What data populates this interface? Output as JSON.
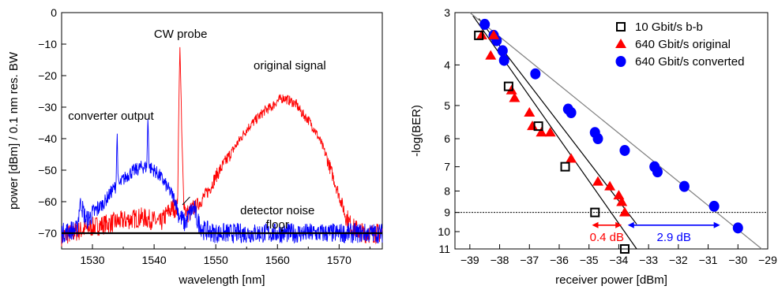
{
  "chart_data": [
    {
      "type": "line",
      "xlabel": "wavelength [nm]",
      "ylabel": "power [dBm] / 0.1 nm res. BW",
      "xlim": [
        1525,
        1577
      ],
      "ylim": [
        -75,
        0
      ],
      "xticks": [
        1530,
        1540,
        1550,
        1560,
        1570
      ],
      "yticks": [
        0,
        -10,
        -20,
        -30,
        -40,
        -50,
        -60,
        -70
      ],
      "grid": false,
      "colors": {
        "original": "#ff0000",
        "converted": "#0000ff",
        "axis": "#000000"
      },
      "annotations": [
        {
          "text": "CW probe",
          "x": 1544.3,
          "y": -8
        },
        {
          "text": "original signal",
          "x": 1562,
          "y": -18
        },
        {
          "text": "converter output",
          "x": 1533,
          "y": -34
        },
        {
          "text": "detector noise",
          "x": 1560,
          "y": -64
        },
        {
          "text": "floor",
          "x": 1560,
          "y": -68.5
        }
      ],
      "series": [
        {
          "name": "original signal",
          "color": "#ff0000",
          "x": [
            1525,
            1530,
            1535,
            1538,
            1540,
            1541,
            1542,
            1543,
            1543.8,
            1544,
            1544.2,
            1544.5,
            1544.8,
            1545.3,
            1546,
            1547.5,
            1549,
            1550,
            1551,
            1552,
            1553,
            1554,
            1555,
            1556,
            1557,
            1558,
            1559,
            1560,
            1561,
            1562,
            1563,
            1564,
            1565,
            1566,
            1567,
            1568,
            1569,
            1570,
            1571,
            1572,
            1573,
            1574,
            1577
          ],
          "y": [
            -71,
            -68,
            -66,
            -65,
            -66,
            -67,
            -64,
            -62,
            -62,
            -30,
            -10,
            -40,
            -60,
            -64,
            -63,
            -60,
            -56,
            -52,
            -49,
            -46,
            -43,
            -40,
            -37,
            -35,
            -33,
            -31,
            -30,
            -28,
            -27,
            -28,
            -29,
            -32,
            -34,
            -37,
            -41,
            -46,
            -52,
            -58,
            -64,
            -68,
            -69,
            -70,
            -70
          ]
        },
        {
          "name": "converter output",
          "color": "#0000ff",
          "x": [
            1525,
            1526.5,
            1527.5,
            1528,
            1529,
            1530,
            1531,
            1532,
            1533,
            1533.8,
            1534,
            1534.2,
            1535,
            1536,
            1537,
            1538,
            1538.8,
            1539,
            1539.2,
            1540,
            1541,
            1542,
            1543,
            1543.5,
            1544,
            1545,
            1546,
            1546.5,
            1547,
            1548,
            1550,
            1552,
            1555,
            1560,
            1565,
            1570,
            1575,
            1577
          ],
          "y": [
            -70,
            -69,
            -69,
            -60,
            -66,
            -64,
            -62,
            -60,
            -57,
            -55,
            -38,
            -55,
            -53,
            -51,
            -50,
            -49,
            -49,
            -33,
            -49,
            -50,
            -52,
            -55,
            -58,
            -60,
            -64,
            -67,
            -63,
            -62,
            -66,
            -69,
            -70,
            -70,
            -70,
            -70,
            -70,
            -70,
            -70,
            -70
          ]
        },
        {
          "name": "detector noise floor",
          "color": "#000000",
          "x": [
            1525,
            1577
          ],
          "y": [
            -70,
            -70
          ]
        }
      ]
    },
    {
      "type": "scatter",
      "xlabel": "receiver power [dBm]",
      "ylabel": "-log(BER)",
      "xlim": [
        -39.5,
        -29
      ],
      "ylim": [
        3,
        11
      ],
      "xticks": [
        -39,
        -38,
        -37,
        -36,
        -35,
        -34,
        -33,
        -32,
        -31,
        -30,
        -29
      ],
      "yticks": [
        3,
        4,
        5,
        6,
        7,
        8,
        9,
        10,
        11
      ],
      "y_scale": "log-log BER axis",
      "threshold": 9,
      "grid": false,
      "legend_position": "top-right",
      "annotations": [
        {
          "text": "0.4 dB",
          "color": "#ff0000",
          "from": -34.9,
          "to": -33.9,
          "y": 9.65
        },
        {
          "text": "2.9 dB",
          "color": "#0000ff",
          "from": -33.7,
          "to": -30.6,
          "y": 9.65
        }
      ],
      "series": [
        {
          "name": "10 Gbit/s b-b",
          "marker": "open-square",
          "color": "#000000",
          "x": [
            -38.7,
            -37.7,
            -36.7,
            -35.8,
            -34.8,
            -33.8
          ],
          "y": [
            3.4,
            4.5,
            5.6,
            7.0,
            9.0,
            11.0
          ]
        },
        {
          "name": "640 Gbit/s original",
          "marker": "filled-triangle",
          "color": "#ff0000",
          "x": [
            -38.6,
            -38.2,
            -38.3,
            -37.6,
            -37.5,
            -37.0,
            -36.9,
            -36.6,
            -36.3,
            -35.6,
            -34.7,
            -34.3,
            -34.0,
            -33.9,
            -33.8
          ],
          "y": [
            3.4,
            3.4,
            3.8,
            4.6,
            4.8,
            5.2,
            5.6,
            5.8,
            5.8,
            6.7,
            7.6,
            7.8,
            8.2,
            8.5,
            9.0
          ]
        },
        {
          "name": "640 Gbit/s converted",
          "marker": "filled-circle",
          "color": "#0000ff",
          "x": [
            -38.5,
            -38.2,
            -38.1,
            -37.9,
            -37.85,
            -36.8,
            -35.7,
            -35.6,
            -34.8,
            -34.7,
            -33.8,
            -32.8,
            -32.7,
            -31.8,
            -30.8,
            -30.0
          ],
          "y": [
            3.2,
            3.4,
            3.5,
            3.7,
            3.9,
            4.2,
            5.1,
            5.2,
            5.8,
            6.0,
            6.4,
            7.0,
            7.2,
            7.8,
            8.7,
            9.8
          ]
        }
      ],
      "fits": [
        {
          "color": "#000000",
          "x": [
            -38.9,
            -33.4
          ],
          "y": [
            3.05,
            11.0
          ]
        },
        {
          "color": "#000000",
          "x": [
            -38.7,
            -33.4
          ],
          "y": [
            3.1,
            9.6
          ]
        },
        {
          "color": "#808080",
          "x": [
            -39.0,
            -29.2
          ],
          "y": [
            3.0,
            11.0
          ]
        }
      ]
    }
  ]
}
